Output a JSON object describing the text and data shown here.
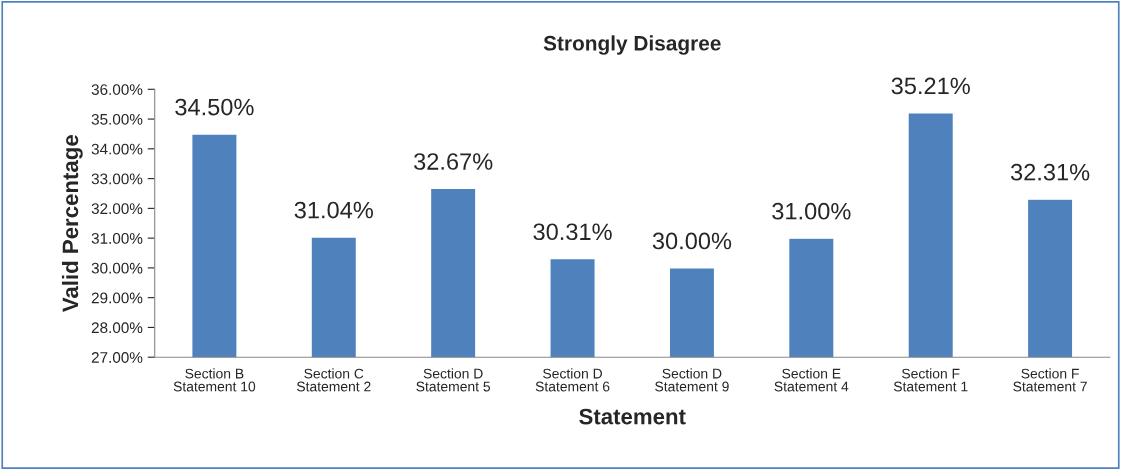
{
  "chart_data": {
    "type": "bar",
    "title": "Strongly Disagree",
    "xlabel": "Statement",
    "ylabel": "Valid Percentage",
    "categories": [
      "Section B\nStatement 10",
      "Section C\nStatement 2",
      "Section D\nStatement 5",
      "Section D\nStatement 6",
      "Section D\nStatement 9",
      "Section E\nStatement 4",
      "Section F\nStatement 1",
      "Section F\nStatement 7"
    ],
    "values": [
      34.5,
      31.04,
      32.67,
      30.31,
      30.0,
      31.0,
      35.21,
      32.31
    ],
    "value_labels": [
      "34.50%",
      "31.04%",
      "32.67%",
      "30.31%",
      "30.00%",
      "31.00%",
      "35.21%",
      "32.31%"
    ],
    "color": "#4f81bd",
    "ylim": [
      27,
      36
    ],
    "yticks": [
      {
        "value": 27,
        "label": "27.00%"
      },
      {
        "value": 28,
        "label": "28.00%"
      },
      {
        "value": 29,
        "label": "29.00%"
      },
      {
        "value": 30,
        "label": "30.00%"
      },
      {
        "value": 31,
        "label": "31.00%"
      },
      {
        "value": 32,
        "label": "32.00%"
      },
      {
        "value": 33,
        "label": "33.00%"
      },
      {
        "value": 34,
        "label": "34.00%"
      },
      {
        "value": 35,
        "label": "35.00%"
      },
      {
        "value": 36,
        "label": "36.00%"
      }
    ],
    "grid": false
  }
}
